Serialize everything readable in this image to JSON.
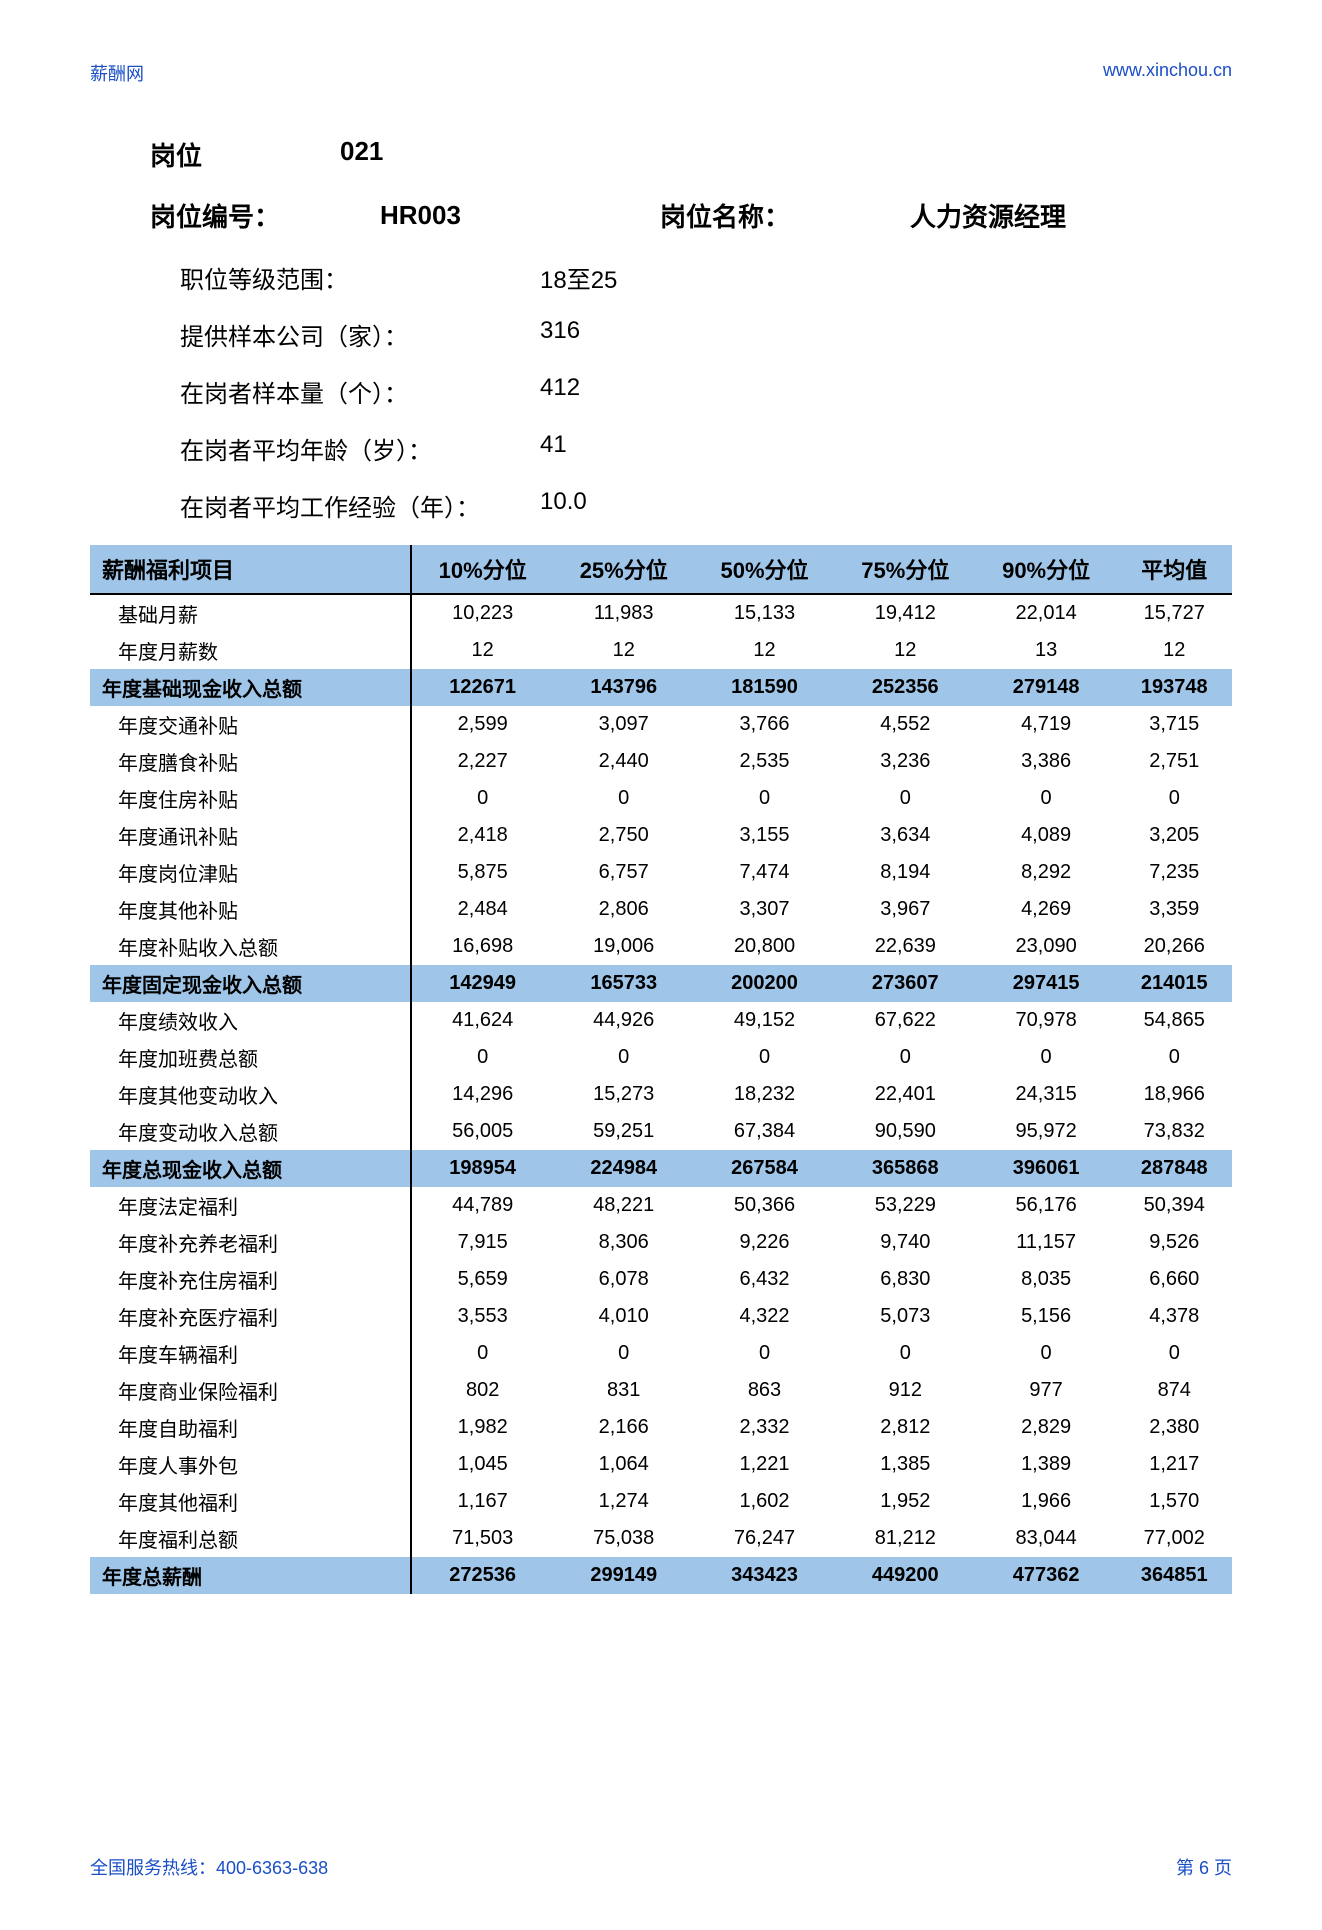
{
  "site_name": "薪酬网",
  "site_url": "www.xinchou.cn",
  "header": {
    "post_label": "岗位",
    "post_code": "021",
    "code_label": "岗位编号：",
    "code_value": "HR003",
    "name_label": "岗位名称：",
    "name_value": "人力资源经理"
  },
  "meta": [
    {
      "label": "职位等级范围：",
      "value": "18至25"
    },
    {
      "label": "提供样本公司（家）：",
      "value": "316"
    },
    {
      "label": "在岗者样本量（个）：",
      "value": "412"
    },
    {
      "label": "在岗者平均年龄（岁）：",
      "value": "41"
    },
    {
      "label": "在岗者平均工作经验（年）：",
      "value": "10.0"
    }
  ],
  "table": {
    "columns": [
      "薪酬福利项目",
      "10%分位",
      "25%分位",
      "50%分位",
      "75%分位",
      "90%分位",
      "平均值"
    ],
    "rows": [
      {
        "label": "基础月薪",
        "vals": [
          "10,223",
          "11,983",
          "15,133",
          "19,412",
          "22,014",
          "15,727"
        ],
        "subtotal": false
      },
      {
        "label": "年度月薪数",
        "vals": [
          "12",
          "12",
          "12",
          "12",
          "13",
          "12"
        ],
        "subtotal": false
      },
      {
        "label": "年度基础现金收入总额",
        "vals": [
          "122671",
          "143796",
          "181590",
          "252356",
          "279148",
          "193748"
        ],
        "subtotal": true
      },
      {
        "label": "年度交通补贴",
        "vals": [
          "2,599",
          "3,097",
          "3,766",
          "4,552",
          "4,719",
          "3,715"
        ],
        "subtotal": false
      },
      {
        "label": "年度膳食补贴",
        "vals": [
          "2,227",
          "2,440",
          "2,535",
          "3,236",
          "3,386",
          "2,751"
        ],
        "subtotal": false
      },
      {
        "label": "年度住房补贴",
        "vals": [
          "0",
          "0",
          "0",
          "0",
          "0",
          "0"
        ],
        "subtotal": false
      },
      {
        "label": "年度通讯补贴",
        "vals": [
          "2,418",
          "2,750",
          "3,155",
          "3,634",
          "4,089",
          "3,205"
        ],
        "subtotal": false
      },
      {
        "label": "年度岗位津贴",
        "vals": [
          "5,875",
          "6,757",
          "7,474",
          "8,194",
          "8,292",
          "7,235"
        ],
        "subtotal": false
      },
      {
        "label": "年度其他补贴",
        "vals": [
          "2,484",
          "2,806",
          "3,307",
          "3,967",
          "4,269",
          "3,359"
        ],
        "subtotal": false
      },
      {
        "label": "年度补贴收入总额",
        "vals": [
          "16,698",
          "19,006",
          "20,800",
          "22,639",
          "23,090",
          "20,266"
        ],
        "subtotal": false
      },
      {
        "label": "年度固定现金收入总额",
        "vals": [
          "142949",
          "165733",
          "200200",
          "273607",
          "297415",
          "214015"
        ],
        "subtotal": true
      },
      {
        "label": "年度绩效收入",
        "vals": [
          "41,624",
          "44,926",
          "49,152",
          "67,622",
          "70,978",
          "54,865"
        ],
        "subtotal": false
      },
      {
        "label": "年度加班费总额",
        "vals": [
          "0",
          "0",
          "0",
          "0",
          "0",
          "0"
        ],
        "subtotal": false
      },
      {
        "label": "年度其他变动收入",
        "vals": [
          "14,296",
          "15,273",
          "18,232",
          "22,401",
          "24,315",
          "18,966"
        ],
        "subtotal": false
      },
      {
        "label": "年度变动收入总额",
        "vals": [
          "56,005",
          "59,251",
          "67,384",
          "90,590",
          "95,972",
          "73,832"
        ],
        "subtotal": false
      },
      {
        "label": "年度总现金收入总额",
        "vals": [
          "198954",
          "224984",
          "267584",
          "365868",
          "396061",
          "287848"
        ],
        "subtotal": true
      },
      {
        "label": "年度法定福利",
        "vals": [
          "44,789",
          "48,221",
          "50,366",
          "53,229",
          "56,176",
          "50,394"
        ],
        "subtotal": false
      },
      {
        "label": "年度补充养老福利",
        "vals": [
          "7,915",
          "8,306",
          "9,226",
          "9,740",
          "11,157",
          "9,526"
        ],
        "subtotal": false
      },
      {
        "label": "年度补充住房福利",
        "vals": [
          "5,659",
          "6,078",
          "6,432",
          "6,830",
          "8,035",
          "6,660"
        ],
        "subtotal": false
      },
      {
        "label": "年度补充医疗福利",
        "vals": [
          "3,553",
          "4,010",
          "4,322",
          "5,073",
          "5,156",
          "4,378"
        ],
        "subtotal": false
      },
      {
        "label": "年度车辆福利",
        "vals": [
          "0",
          "0",
          "0",
          "0",
          "0",
          "0"
        ],
        "subtotal": false
      },
      {
        "label": "年度商业保险福利",
        "vals": [
          "802",
          "831",
          "863",
          "912",
          "977",
          "874"
        ],
        "subtotal": false
      },
      {
        "label": "年度自助福利",
        "vals": [
          "1,982",
          "2,166",
          "2,332",
          "2,812",
          "2,829",
          "2,380"
        ],
        "subtotal": false
      },
      {
        "label": "年度人事外包",
        "vals": [
          "1,045",
          "1,064",
          "1,221",
          "1,385",
          "1,389",
          "1,217"
        ],
        "subtotal": false
      },
      {
        "label": "年度其他福利",
        "vals": [
          "1,167",
          "1,274",
          "1,602",
          "1,952",
          "1,966",
          "1,570"
        ],
        "subtotal": false
      },
      {
        "label": "年度福利总额",
        "vals": [
          "71,503",
          "75,038",
          "76,247",
          "81,212",
          "83,044",
          "77,002"
        ],
        "subtotal": false
      },
      {
        "label": "年度总薪酬",
        "vals": [
          "272536",
          "299149",
          "343423",
          "449200",
          "477362",
          "364851"
        ],
        "subtotal": true
      }
    ]
  },
  "footer": {
    "hotline": "全国服务热线：400-6363-638",
    "page": "第 6 页"
  },
  "colors": {
    "link": "#1a4fc7",
    "header_bg": "#9fc5e8",
    "text": "#000000",
    "page_bg": "#ffffff"
  }
}
